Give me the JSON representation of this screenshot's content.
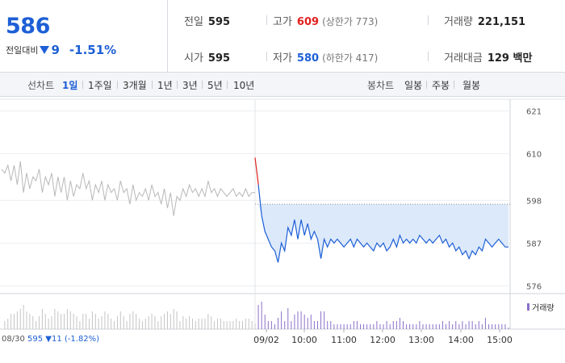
{
  "stock": {
    "price": "586",
    "change_label": "전일대비",
    "change_amount": "9",
    "change_percent": "-1.51%"
  },
  "info": {
    "prev_close": {
      "label": "전일",
      "value": "595"
    },
    "high": {
      "label": "고가",
      "value": "609",
      "limit": "(상한가 773)"
    },
    "volume": {
      "label": "거래량",
      "value": "221,151"
    },
    "open": {
      "label": "시가",
      "value": "595"
    },
    "low": {
      "label": "저가",
      "value": "580",
      "limit": "(하한가 417)"
    },
    "trade_value": {
      "label": "거래대금",
      "value": "129 백만"
    }
  },
  "toolbar": {
    "line_chart_label": "선차트",
    "periods": [
      "1일",
      "1주일",
      "3개월",
      "1년",
      "3년",
      "5년",
      "10년"
    ],
    "active_period": "1일",
    "candle_chart_label": "봉차트",
    "candle_periods": [
      "일봉",
      "주봉",
      "월봉"
    ]
  },
  "chart_data": {
    "type": "line",
    "ylim": [
      574,
      624
    ],
    "yticks": [
      "621",
      "610",
      "598",
      "587",
      "576"
    ],
    "prev_close_reference": 595,
    "today_base_line": 597,
    "x_labels": [
      "08/30",
      "09/02",
      "10:00",
      "11:00",
      "12:00",
      "13:00",
      "14:00",
      "15:00"
    ],
    "prev_day_series": [
      606,
      605,
      607,
      603,
      607,
      602,
      608,
      600,
      605,
      601,
      604,
      603,
      606,
      600,
      604,
      602,
      605,
      599,
      604,
      600,
      604,
      598,
      603,
      599,
      602,
      601,
      605,
      601,
      603,
      598,
      602,
      600,
      603,
      598,
      602,
      600,
      601,
      598,
      603,
      600,
      601,
      597,
      602,
      598,
      600,
      599,
      601,
      598,
      602,
      599,
      600,
      597,
      601,
      596,
      600,
      594,
      599,
      598,
      601,
      599,
      602,
      600,
      601,
      599,
      601,
      599,
      603,
      600,
      601,
      599,
      601,
      600,
      599,
      600,
      601,
      599,
      600,
      599,
      601,
      599,
      600,
      600
    ],
    "today_series": [
      609,
      602,
      594,
      590,
      588,
      586,
      585,
      582,
      587,
      585,
      591,
      589,
      593,
      588,
      593,
      589,
      592,
      588,
      590,
      588,
      583,
      588,
      586,
      588,
      587,
      588,
      587,
      586,
      587,
      588,
      586,
      588,
      587,
      586,
      587,
      586,
      585,
      587,
      586,
      587,
      585,
      586,
      588,
      586,
      589,
      587,
      588,
      587,
      588,
      587,
      589,
      588,
      587,
      588,
      587,
      588,
      589,
      587,
      588,
      586,
      587,
      585,
      586,
      584,
      585,
      583,
      585,
      584,
      586,
      585,
      588,
      587,
      586,
      587,
      588,
      587,
      586,
      586
    ],
    "legend": "거래량"
  },
  "bottom_info": {
    "date": "08/30",
    "price": "595",
    "change": "▼11 (-1.82%)"
  },
  "colors": {
    "up": "#e0211f",
    "down": "#1d5fd6",
    "prev_line": "#b8b8b8",
    "fill": "#dce9fa",
    "volume": "#8a6fc9"
  }
}
